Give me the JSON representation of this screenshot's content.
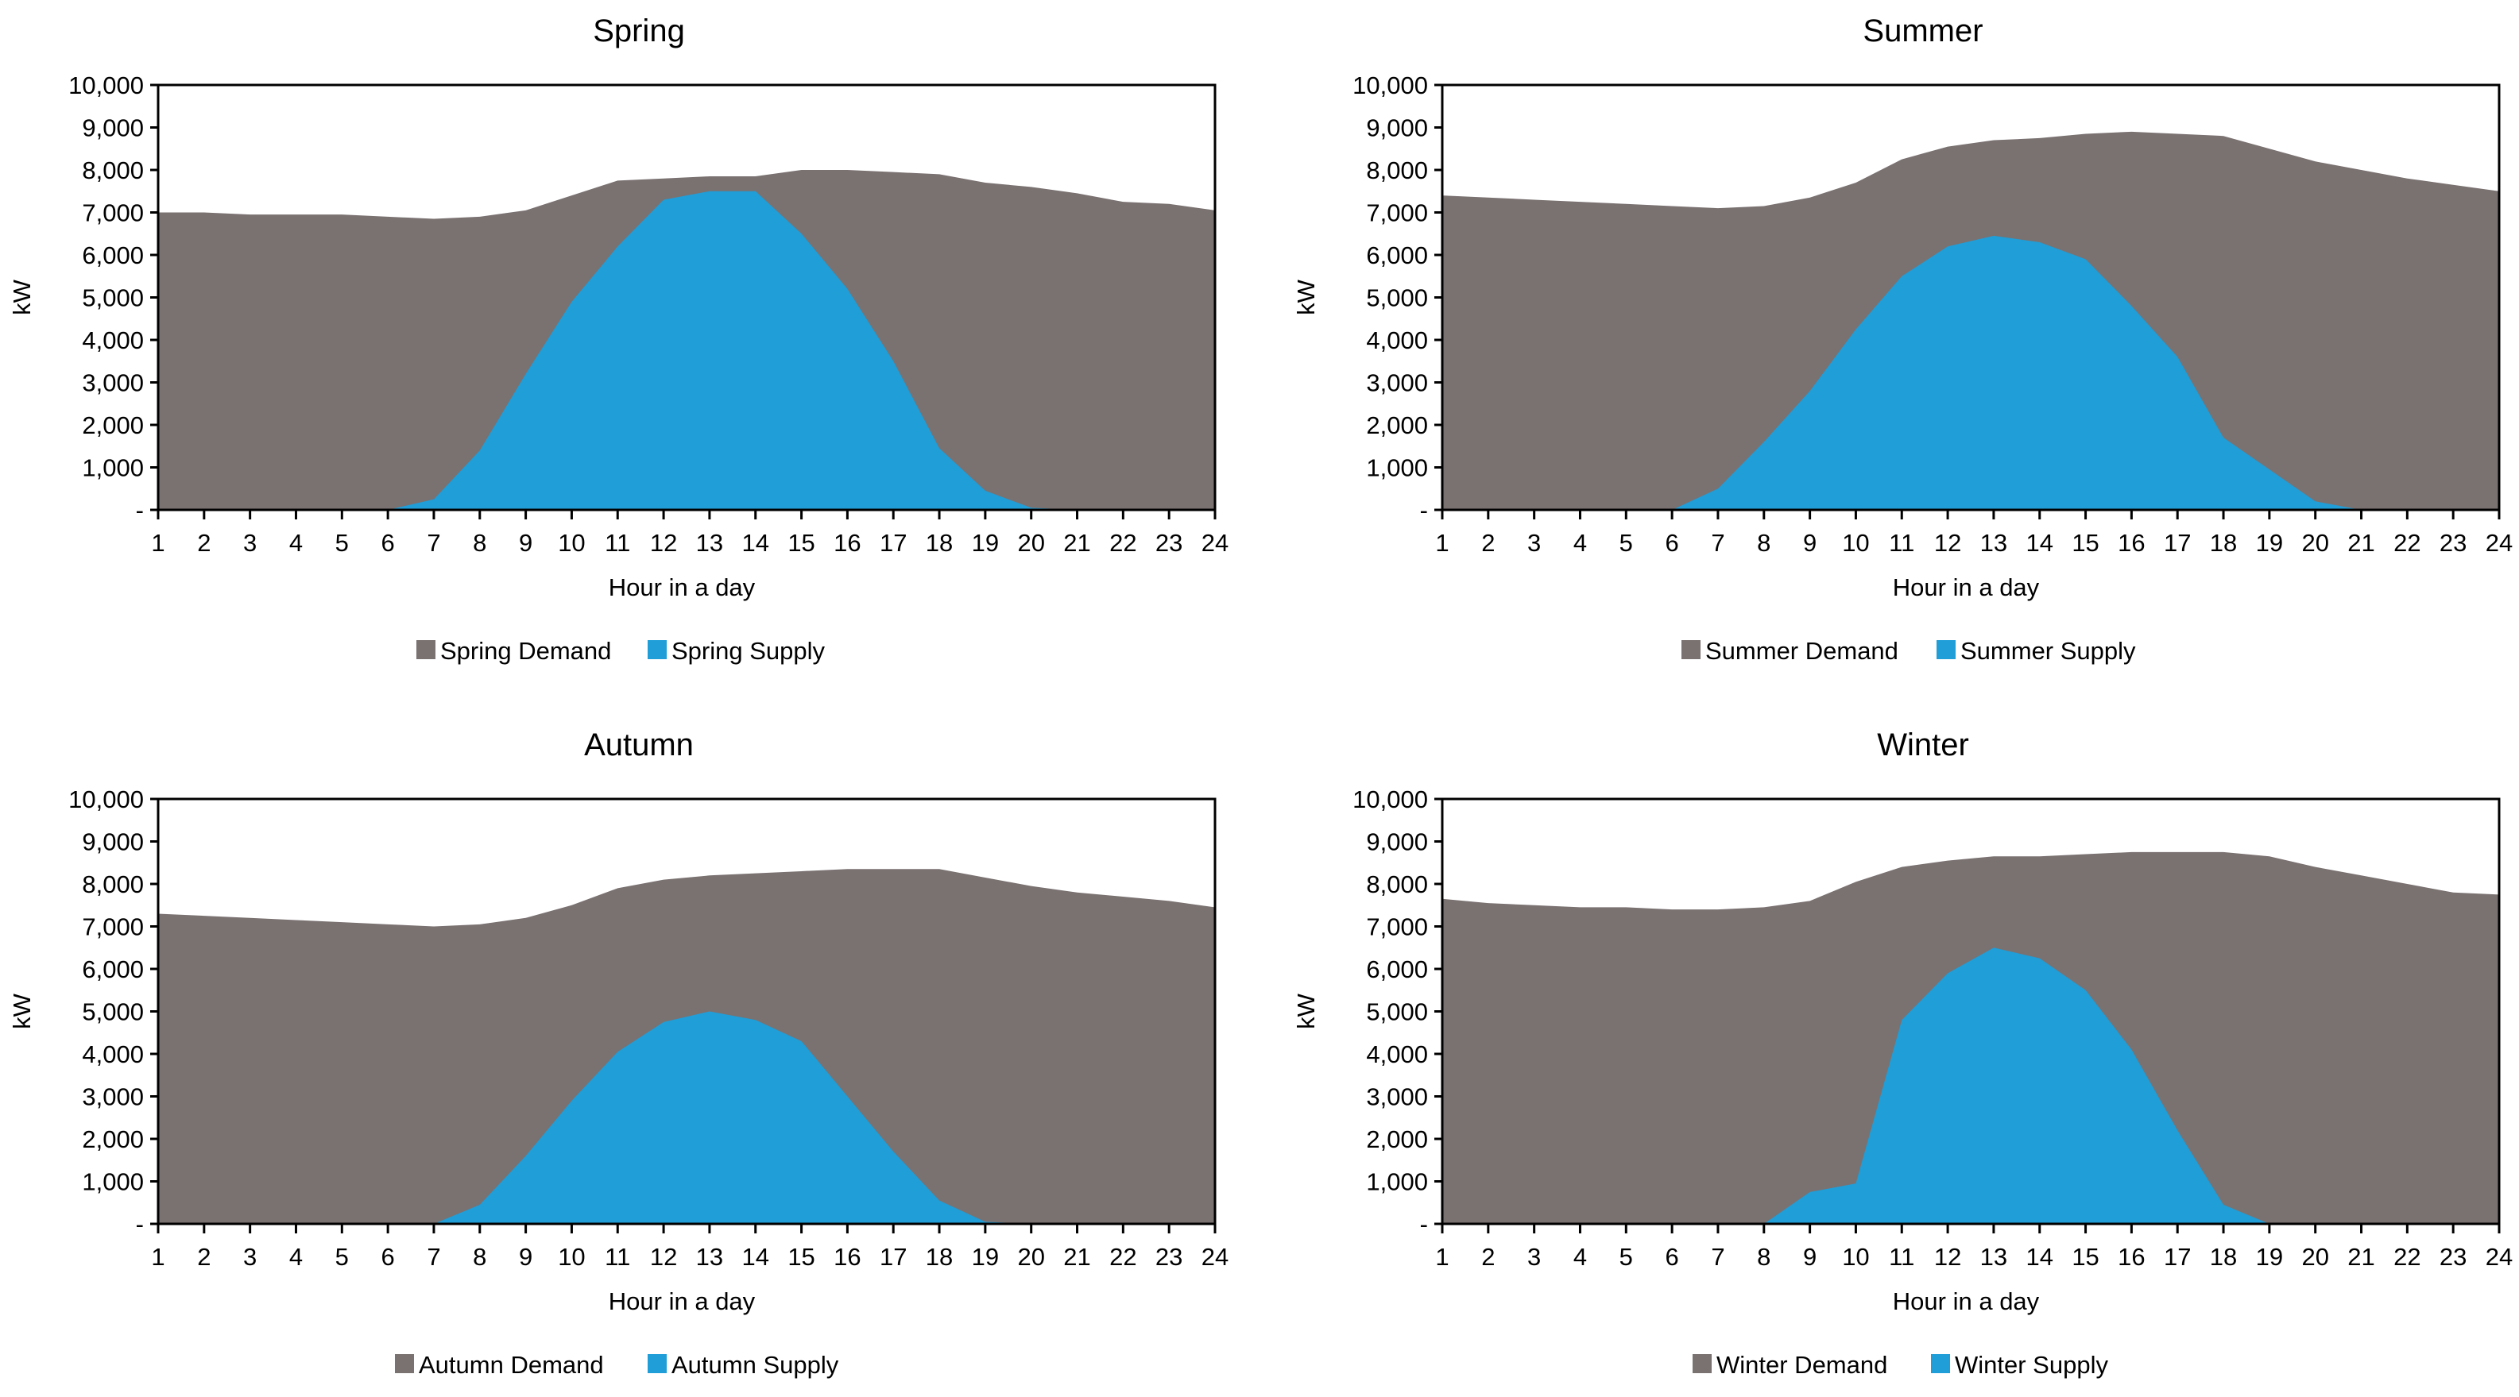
{
  "colors": {
    "demand": "#7a7171",
    "supply": "#1f9ed8",
    "axis": "#000000",
    "background": "#ffffff"
  },
  "chart_data": [
    {
      "type": "area",
      "title": "Spring",
      "xlabel": "Hour in a day",
      "ylabel": "kW",
      "ylim": [
        0,
        10000
      ],
      "yticks": [
        "-",
        "1,000",
        "2,000",
        "3,000",
        "4,000",
        "5,000",
        "6,000",
        "7,000",
        "8,000",
        "9,000",
        "10,000"
      ],
      "categories": [
        "1",
        "2",
        "3",
        "4",
        "5",
        "6",
        "7",
        "8",
        "9",
        "10",
        "11",
        "12",
        "13",
        "14",
        "15",
        "16",
        "17",
        "18",
        "19",
        "20",
        "21",
        "22",
        "23",
        "24"
      ],
      "series": [
        {
          "name": "Spring Demand",
          "values": [
            7000,
            7000,
            6950,
            6950,
            6950,
            6900,
            6850,
            6900,
            7050,
            7400,
            7750,
            7800,
            7850,
            7850,
            8000,
            8000,
            7950,
            7900,
            7700,
            7600,
            7450,
            7250,
            7200,
            7050
          ]
        },
        {
          "name": "Spring Supply",
          "values": [
            0,
            0,
            0,
            0,
            0,
            0,
            250,
            1400,
            3200,
            4900,
            6200,
            7300,
            7500,
            7500,
            6500,
            5200,
            3500,
            1450,
            450,
            50,
            0,
            0,
            0,
            0
          ]
        }
      ],
      "legend": [
        "Spring Demand",
        "Spring Supply"
      ]
    },
    {
      "type": "area",
      "title": "Summer",
      "xlabel": "Hour in a day",
      "ylabel": "kW",
      "ylim": [
        0,
        10000
      ],
      "yticks": [
        "-",
        "1,000",
        "2,000",
        "3,000",
        "4,000",
        "5,000",
        "6,000",
        "7,000",
        "8,000",
        "9,000",
        "10,000"
      ],
      "categories": [
        "1",
        "2",
        "3",
        "4",
        "5",
        "6",
        "7",
        "8",
        "9",
        "10",
        "11",
        "12",
        "13",
        "14",
        "15",
        "16",
        "17",
        "18",
        "19",
        "20",
        "21",
        "22",
        "23",
        "24"
      ],
      "series": [
        {
          "name": "Summer Demand",
          "values": [
            7400,
            7350,
            7300,
            7250,
            7200,
            7150,
            7100,
            7150,
            7350,
            7700,
            8250,
            8550,
            8700,
            8750,
            8850,
            8900,
            8850,
            8800,
            8500,
            8200,
            8000,
            7800,
            7650,
            7500
          ]
        },
        {
          "name": "Summer Supply",
          "values": [
            0,
            0,
            0,
            0,
            0,
            0,
            500,
            1600,
            2800,
            4250,
            5500,
            6200,
            6450,
            6300,
            5900,
            4800,
            3600,
            1700,
            950,
            200,
            0,
            0,
            0,
            0
          ]
        }
      ],
      "legend": [
        "Summer Demand",
        "Summer Supply"
      ]
    },
    {
      "type": "area",
      "title": "Autumn",
      "xlabel": "Hour in a day",
      "ylabel": "kW",
      "ylim": [
        0,
        10000
      ],
      "yticks": [
        "-",
        "1,000",
        "2,000",
        "3,000",
        "4,000",
        "5,000",
        "6,000",
        "7,000",
        "8,000",
        "9,000",
        "10,000"
      ],
      "categories": [
        "1",
        "2",
        "3",
        "4",
        "5",
        "6",
        "7",
        "8",
        "9",
        "10",
        "11",
        "12",
        "13",
        "14",
        "15",
        "16",
        "17",
        "18",
        "19",
        "20",
        "21",
        "22",
        "23",
        "24"
      ],
      "series": [
        {
          "name": "Autumn Demand",
          "values": [
            7300,
            7250,
            7200,
            7150,
            7100,
            7050,
            7000,
            7050,
            7200,
            7500,
            7900,
            8100,
            8200,
            8250,
            8300,
            8350,
            8350,
            8350,
            8150,
            7950,
            7800,
            7700,
            7600,
            7450
          ]
        },
        {
          "name": "Autumn Supply",
          "values": [
            0,
            0,
            0,
            0,
            0,
            0,
            0,
            450,
            1600,
            2900,
            4050,
            4750,
            5000,
            4800,
            4300,
            3000,
            1700,
            550,
            50,
            0,
            0,
            0,
            0,
            0
          ]
        }
      ],
      "legend": [
        "Autumn Demand",
        "Autumn Supply"
      ]
    },
    {
      "type": "area",
      "title": "Winter",
      "xlabel": "Hour in a day",
      "ylabel": "kW",
      "ylim": [
        0,
        10000
      ],
      "yticks": [
        "-",
        "1,000",
        "2,000",
        "3,000",
        "4,000",
        "5,000",
        "6,000",
        "7,000",
        "8,000",
        "9,000",
        "10,000"
      ],
      "categories": [
        "1",
        "2",
        "3",
        "4",
        "5",
        "6",
        "7",
        "8",
        "9",
        "10",
        "11",
        "12",
        "13",
        "14",
        "15",
        "16",
        "17",
        "18",
        "19",
        "20",
        "21",
        "22",
        "23",
        "24"
      ],
      "series": [
        {
          "name": "Winter Demand",
          "values": [
            7650,
            7550,
            7500,
            7450,
            7450,
            7400,
            7400,
            7450,
            7600,
            8050,
            8400,
            8550,
            8650,
            8650,
            8700,
            8750,
            8750,
            8750,
            8650,
            8400,
            8200,
            8000,
            7800,
            7750
          ]
        },
        {
          "name": "Winter Supply",
          "values": [
            0,
            0,
            0,
            0,
            0,
            0,
            0,
            0,
            750,
            950,
            4800,
            5900,
            6500,
            6250,
            5500,
            4100,
            2200,
            450,
            0,
            0,
            0,
            0,
            0,
            0
          ]
        }
      ],
      "legend": [
        "Winter Demand",
        "Winter Supply"
      ]
    }
  ]
}
